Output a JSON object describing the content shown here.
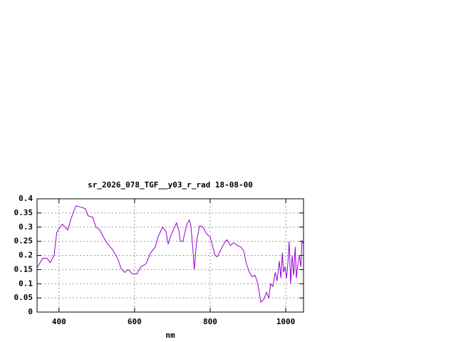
{
  "chart_data": {
    "type": "line",
    "title": "sr_2026_078_TGF__y03_r_rad 18-08-00",
    "x_label": "nm",
    "xlim": [
      342,
      1047
    ],
    "xticks": [
      400,
      600,
      800,
      1000
    ],
    "ylim": [
      0,
      0.4
    ],
    "yticks": [
      0,
      0.05,
      0.1,
      0.15,
      0.2,
      0.25,
      0.3,
      0.35,
      0.4
    ],
    "grid": true,
    "series": [
      {
        "color": "#9400d3",
        "x": [
          342,
          357,
          368,
          377,
          387,
          394,
          400,
          409,
          423,
          432,
          445,
          460,
          470,
          477,
          489,
          498,
          508,
          526,
          542,
          555,
          564,
          574,
          583,
          594,
          606,
          617,
          630,
          643,
          655,
          662,
          674,
          683,
          689,
          696,
          706,
          711,
          717,
          721,
          728,
          738,
          745,
          749,
          755,
          758,
          764,
          772,
          781,
          791,
          800,
          813,
          819,
          828,
          840,
          845,
          853,
          862,
          872,
          881,
          889,
          896,
          904,
          911,
          919,
          926,
          934,
          942,
          949,
          955,
          960,
          966,
          972,
          977,
          983,
          987,
          991,
          994,
          998,
          1002,
          1006,
          1009,
          1013,
          1017,
          1021,
          1025,
          1028,
          1032,
          1036,
          1040,
          1043,
          1047
        ],
        "values": [
          0.156,
          0.19,
          0.19,
          0.175,
          0.2,
          0.28,
          0.295,
          0.31,
          0.29,
          0.33,
          0.375,
          0.37,
          0.365,
          0.34,
          0.335,
          0.3,
          0.29,
          0.245,
          0.22,
          0.19,
          0.155,
          0.14,
          0.15,
          0.135,
          0.135,
          0.16,
          0.17,
          0.21,
          0.23,
          0.265,
          0.3,
          0.285,
          0.24,
          0.27,
          0.3,
          0.315,
          0.29,
          0.25,
          0.25,
          0.31,
          0.325,
          0.305,
          0.21,
          0.15,
          0.25,
          0.305,
          0.3,
          0.275,
          0.265,
          0.2,
          0.195,
          0.22,
          0.25,
          0.255,
          0.235,
          0.245,
          0.235,
          0.23,
          0.215,
          0.17,
          0.14,
          0.125,
          0.13,
          0.1,
          0.035,
          0.045,
          0.07,
          0.05,
          0.1,
          0.09,
          0.14,
          0.11,
          0.18,
          0.12,
          0.21,
          0.14,
          0.16,
          0.12,
          0.18,
          0.25,
          0.1,
          0.2,
          0.13,
          0.23,
          0.12,
          0.17,
          0.2,
          0.16,
          0.25,
          0.24
        ]
      }
    ]
  }
}
